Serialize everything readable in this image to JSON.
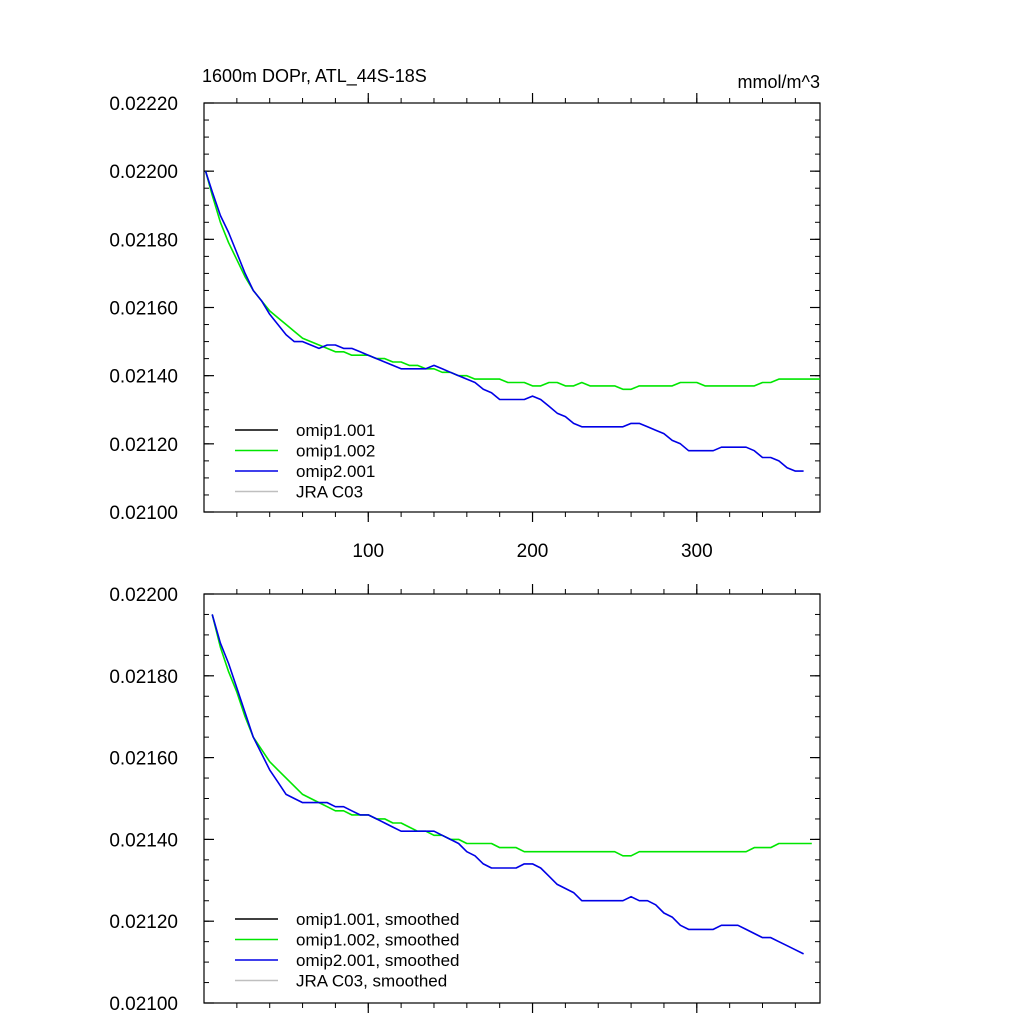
{
  "figure": {
    "title": "1600m DOPr, ATL_44S-18S",
    "units": "mmol/m^3"
  },
  "chart_data": [
    {
      "type": "line",
      "title": "1600m DOPr, ATL_44S-18S",
      "units_label": "mmol/m^3",
      "xlim": [
        0,
        375
      ],
      "ylim": [
        0.021,
        0.0222
      ],
      "x_ticks": [
        100,
        200,
        300
      ],
      "x_tick_labels": [
        "100",
        "200",
        "300"
      ],
      "y_ticks": [
        0.021,
        0.0212,
        0.0214,
        0.0216,
        0.0218,
        0.022,
        0.0222
      ],
      "y_tick_labels": [
        "0.02100",
        "0.02120",
        "0.02140",
        "0.02160",
        "0.02180",
        "0.02200",
        "0.02220"
      ],
      "grid": false,
      "legend_position": "bottom-left",
      "legend": [
        "omip1.001",
        "omip1.002",
        "omip2.001",
        "JRA C03"
      ],
      "series": [
        {
          "name": "omip1.001",
          "color": "#000000",
          "x": [],
          "y": []
        },
        {
          "name": "omip1.002",
          "color": "#00e600",
          "x": [
            1,
            5,
            10,
            15,
            20,
            25,
            30,
            35,
            40,
            45,
            50,
            55,
            60,
            65,
            70,
            75,
            80,
            85,
            90,
            95,
            100,
            105,
            110,
            115,
            120,
            125,
            130,
            135,
            140,
            145,
            150,
            155,
            160,
            165,
            170,
            175,
            180,
            185,
            190,
            195,
            200,
            205,
            210,
            215,
            220,
            225,
            230,
            235,
            240,
            245,
            250,
            255,
            260,
            265,
            270,
            275,
            280,
            285,
            290,
            295,
            300,
            305,
            310,
            315,
            320,
            325,
            330,
            335,
            340,
            345,
            350,
            355,
            360,
            365,
            370,
            375
          ],
          "y": [
            0.022,
            0.02193,
            0.02185,
            0.02179,
            0.02174,
            0.02169,
            0.02165,
            0.02162,
            0.02159,
            0.02157,
            0.02155,
            0.02153,
            0.02151,
            0.0215,
            0.02149,
            0.02148,
            0.02147,
            0.02147,
            0.02146,
            0.02146,
            0.02146,
            0.02145,
            0.02145,
            0.02144,
            0.02144,
            0.02143,
            0.02143,
            0.02142,
            0.02142,
            0.02141,
            0.02141,
            0.0214,
            0.0214,
            0.02139,
            0.02139,
            0.02139,
            0.02139,
            0.02138,
            0.02138,
            0.02138,
            0.02137,
            0.02137,
            0.02138,
            0.02138,
            0.02137,
            0.02137,
            0.02138,
            0.02137,
            0.02137,
            0.02137,
            0.02137,
            0.02136,
            0.02136,
            0.02137,
            0.02137,
            0.02137,
            0.02137,
            0.02137,
            0.02138,
            0.02138,
            0.02138,
            0.02137,
            0.02137,
            0.02137,
            0.02137,
            0.02137,
            0.02137,
            0.02137,
            0.02138,
            0.02138,
            0.02139,
            0.02139,
            0.02139,
            0.02139,
            0.02139,
            0.02139
          ]
        },
        {
          "name": "omip2.001",
          "color": "#0000e6",
          "x": [
            1,
            5,
            10,
            15,
            20,
            25,
            30,
            35,
            40,
            45,
            50,
            55,
            60,
            65,
            70,
            75,
            80,
            85,
            90,
            95,
            100,
            105,
            110,
            115,
            120,
            125,
            130,
            135,
            140,
            145,
            150,
            155,
            160,
            165,
            170,
            175,
            180,
            185,
            190,
            195,
            200,
            205,
            210,
            215,
            220,
            225,
            230,
            235,
            240,
            245,
            250,
            255,
            260,
            265,
            270,
            275,
            280,
            285,
            290,
            295,
            300,
            305,
            310,
            315,
            320,
            325,
            330,
            335,
            340,
            345,
            350,
            355,
            360,
            365
          ],
          "y": [
            0.022,
            0.02194,
            0.02187,
            0.02182,
            0.02176,
            0.0217,
            0.02165,
            0.02162,
            0.02158,
            0.02155,
            0.02152,
            0.0215,
            0.0215,
            0.02149,
            0.02148,
            0.02149,
            0.02149,
            0.02148,
            0.02148,
            0.02147,
            0.02146,
            0.02145,
            0.02144,
            0.02143,
            0.02142,
            0.02142,
            0.02142,
            0.02142,
            0.02143,
            0.02142,
            0.02141,
            0.0214,
            0.02139,
            0.02138,
            0.02136,
            0.02135,
            0.02133,
            0.02133,
            0.02133,
            0.02133,
            0.02134,
            0.02133,
            0.02131,
            0.02129,
            0.02128,
            0.02126,
            0.02125,
            0.02125,
            0.02125,
            0.02125,
            0.02125,
            0.02125,
            0.02126,
            0.02126,
            0.02125,
            0.02124,
            0.02123,
            0.02121,
            0.0212,
            0.02118,
            0.02118,
            0.02118,
            0.02118,
            0.02119,
            0.02119,
            0.02119,
            0.02119,
            0.02118,
            0.02116,
            0.02116,
            0.02115,
            0.02113,
            0.02112,
            0.02112
          ]
        },
        {
          "name": "JRA C03",
          "color": "#bfbfbf",
          "x": [],
          "y": []
        }
      ]
    },
    {
      "type": "line",
      "xlim": [
        0,
        375
      ],
      "ylim": [
        0.021,
        0.022
      ],
      "x_ticks": [
        100,
        200,
        300
      ],
      "x_tick_labels": [
        "",
        "",
        ""
      ],
      "y_ticks": [
        0.021,
        0.0212,
        0.0214,
        0.0216,
        0.0218,
        0.022
      ],
      "y_tick_labels": [
        "0.02100",
        "0.02120",
        "0.02140",
        "0.02160",
        "0.02180",
        "0.02200"
      ],
      "grid": false,
      "legend_position": "bottom-left",
      "legend": [
        "omip1.001, smoothed",
        "omip1.002, smoothed",
        "omip2.001, smoothed",
        "JRA C03, smoothed"
      ],
      "series": [
        {
          "name": "omip1.001, smoothed",
          "color": "#000000",
          "x": [],
          "y": []
        },
        {
          "name": "omip1.002, smoothed",
          "color": "#00e600",
          "x": [
            5,
            10,
            15,
            20,
            25,
            30,
            35,
            40,
            45,
            50,
            55,
            60,
            65,
            70,
            75,
            80,
            85,
            90,
            95,
            100,
            105,
            110,
            115,
            120,
            125,
            130,
            135,
            140,
            145,
            150,
            155,
            160,
            165,
            170,
            175,
            180,
            185,
            190,
            195,
            200,
            205,
            210,
            215,
            220,
            225,
            230,
            235,
            240,
            245,
            250,
            255,
            260,
            265,
            270,
            275,
            280,
            285,
            290,
            295,
            300,
            305,
            310,
            315,
            320,
            325,
            330,
            335,
            340,
            345,
            350,
            355,
            360,
            365,
            370
          ],
          "y": [
            0.02195,
            0.02187,
            0.02181,
            0.02176,
            0.0217,
            0.02165,
            0.02162,
            0.02159,
            0.02157,
            0.02155,
            0.02153,
            0.02151,
            0.0215,
            0.02149,
            0.02148,
            0.02147,
            0.02147,
            0.02146,
            0.02146,
            0.02146,
            0.02145,
            0.02145,
            0.02144,
            0.02144,
            0.02143,
            0.02142,
            0.02142,
            0.02141,
            0.02141,
            0.0214,
            0.0214,
            0.02139,
            0.02139,
            0.02139,
            0.02139,
            0.02138,
            0.02138,
            0.02138,
            0.02137,
            0.02137,
            0.02137,
            0.02137,
            0.02137,
            0.02137,
            0.02137,
            0.02137,
            0.02137,
            0.02137,
            0.02137,
            0.02137,
            0.02136,
            0.02136,
            0.02137,
            0.02137,
            0.02137,
            0.02137,
            0.02137,
            0.02137,
            0.02137,
            0.02137,
            0.02137,
            0.02137,
            0.02137,
            0.02137,
            0.02137,
            0.02137,
            0.02138,
            0.02138,
            0.02138,
            0.02139,
            0.02139,
            0.02139,
            0.02139,
            0.02139
          ]
        },
        {
          "name": "omip2.001, smoothed",
          "color": "#0000e6",
          "x": [
            5,
            10,
            15,
            20,
            25,
            30,
            35,
            40,
            45,
            50,
            55,
            60,
            65,
            70,
            75,
            80,
            85,
            90,
            95,
            100,
            105,
            110,
            115,
            120,
            125,
            130,
            135,
            140,
            145,
            150,
            155,
            160,
            165,
            170,
            175,
            180,
            185,
            190,
            195,
            200,
            205,
            210,
            215,
            220,
            225,
            230,
            235,
            240,
            245,
            250,
            255,
            260,
            265,
            270,
            275,
            280,
            285,
            290,
            295,
            300,
            305,
            310,
            315,
            320,
            325,
            330,
            335,
            340,
            345,
            350,
            355,
            360,
            365
          ],
          "y": [
            0.02195,
            0.02188,
            0.02183,
            0.02177,
            0.02171,
            0.02165,
            0.02161,
            0.02157,
            0.02154,
            0.02151,
            0.0215,
            0.02149,
            0.02149,
            0.02149,
            0.02149,
            0.02148,
            0.02148,
            0.02147,
            0.02146,
            0.02146,
            0.02145,
            0.02144,
            0.02143,
            0.02142,
            0.02142,
            0.02142,
            0.02142,
            0.02142,
            0.02141,
            0.0214,
            0.02139,
            0.02137,
            0.02136,
            0.02134,
            0.02133,
            0.02133,
            0.02133,
            0.02133,
            0.02134,
            0.02134,
            0.02133,
            0.02131,
            0.02129,
            0.02128,
            0.02127,
            0.02125,
            0.02125,
            0.02125,
            0.02125,
            0.02125,
            0.02125,
            0.02126,
            0.02125,
            0.02125,
            0.02124,
            0.02122,
            0.02121,
            0.02119,
            0.02118,
            0.02118,
            0.02118,
            0.02118,
            0.02119,
            0.02119,
            0.02119,
            0.02118,
            0.02117,
            0.02116,
            0.02116,
            0.02115,
            0.02114,
            0.02113,
            0.02112
          ]
        },
        {
          "name": "JRA C03, smoothed",
          "color": "#bfbfbf",
          "x": [],
          "y": []
        }
      ]
    }
  ]
}
